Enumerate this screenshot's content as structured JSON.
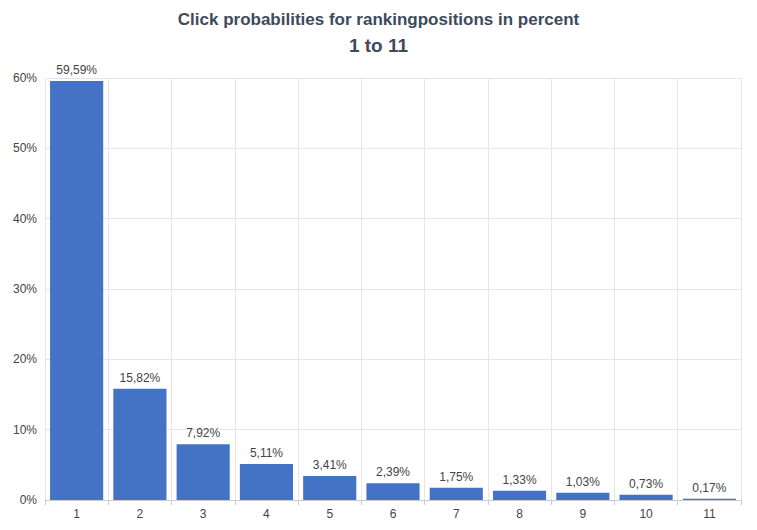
{
  "chart_data": {
    "type": "bar",
    "title": "Click probabilities for rankingpositions in percent",
    "subtitle": "1 to 11",
    "categories": [
      "1",
      "2",
      "3",
      "4",
      "5",
      "6",
      "7",
      "8",
      "9",
      "10",
      "11"
    ],
    "values": [
      59.59,
      15.82,
      7.92,
      5.11,
      3.41,
      2.39,
      1.75,
      1.33,
      1.03,
      0.73,
      0.17
    ],
    "value_labels": [
      "59,59%",
      "15,82%",
      "7,92%",
      "5,11%",
      "3,41%",
      "2,39%",
      "1,75%",
      "1,33%",
      "1,03%",
      "0,73%",
      "0,17%"
    ],
    "color": "#4472c4",
    "ylim": [
      0,
      60
    ],
    "yticks": [
      {
        "value": 0,
        "label": "0%"
      },
      {
        "value": 10,
        "label": "10%"
      },
      {
        "value": 20,
        "label": "20%"
      },
      {
        "value": 30,
        "label": "30%"
      },
      {
        "value": 40,
        "label": "40%"
      },
      {
        "value": 50,
        "label": "50%"
      },
      {
        "value": 60,
        "label": "60%"
      }
    ],
    "grid": true,
    "data_labels": true
  }
}
